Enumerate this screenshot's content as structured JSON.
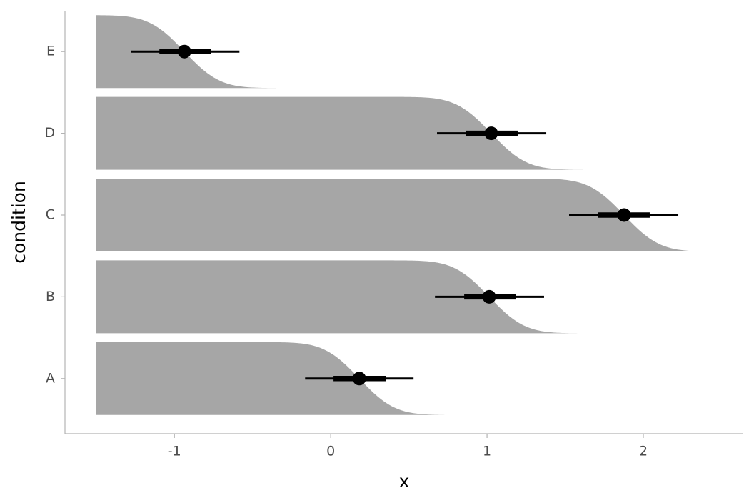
{
  "chart_data": {
    "type": "ccdfinterval",
    "x_label": "x",
    "y_label": "condition",
    "categories": [
      "A",
      "B",
      "C",
      "D",
      "E"
    ],
    "points": [
      0.183,
      1.014,
      1.877,
      1.027,
      -0.936
    ],
    "interval_66": [
      [
        0.018,
        0.352
      ],
      [
        0.854,
        1.183
      ],
      [
        1.712,
        2.041
      ],
      [
        0.863,
        1.196
      ],
      [
        -1.096,
        -0.767
      ]
    ],
    "interval_95": [
      [
        -0.164,
        0.53
      ],
      [
        0.667,
        1.365
      ],
      [
        1.525,
        2.224
      ],
      [
        0.68,
        1.379
      ],
      [
        -1.279,
        -0.584
      ]
    ],
    "slab_color": "#a6a6a6",
    "interval_color": "#000000",
    "xlim": [
      -1.7,
      2.635
    ],
    "xticks": [
      -1,
      0,
      1,
      2
    ]
  }
}
